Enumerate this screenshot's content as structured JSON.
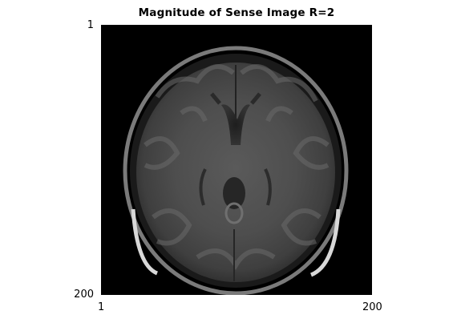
{
  "figure": {
    "title": "Magnitude of Sense Image R=2",
    "x_axis": {
      "ticks": [
        "1",
        "200"
      ]
    },
    "y_axis": {
      "ticks": [
        "1",
        "200"
      ]
    },
    "image": {
      "subject": "axial-brain-mri-slice",
      "colormap": "gray"
    }
  }
}
